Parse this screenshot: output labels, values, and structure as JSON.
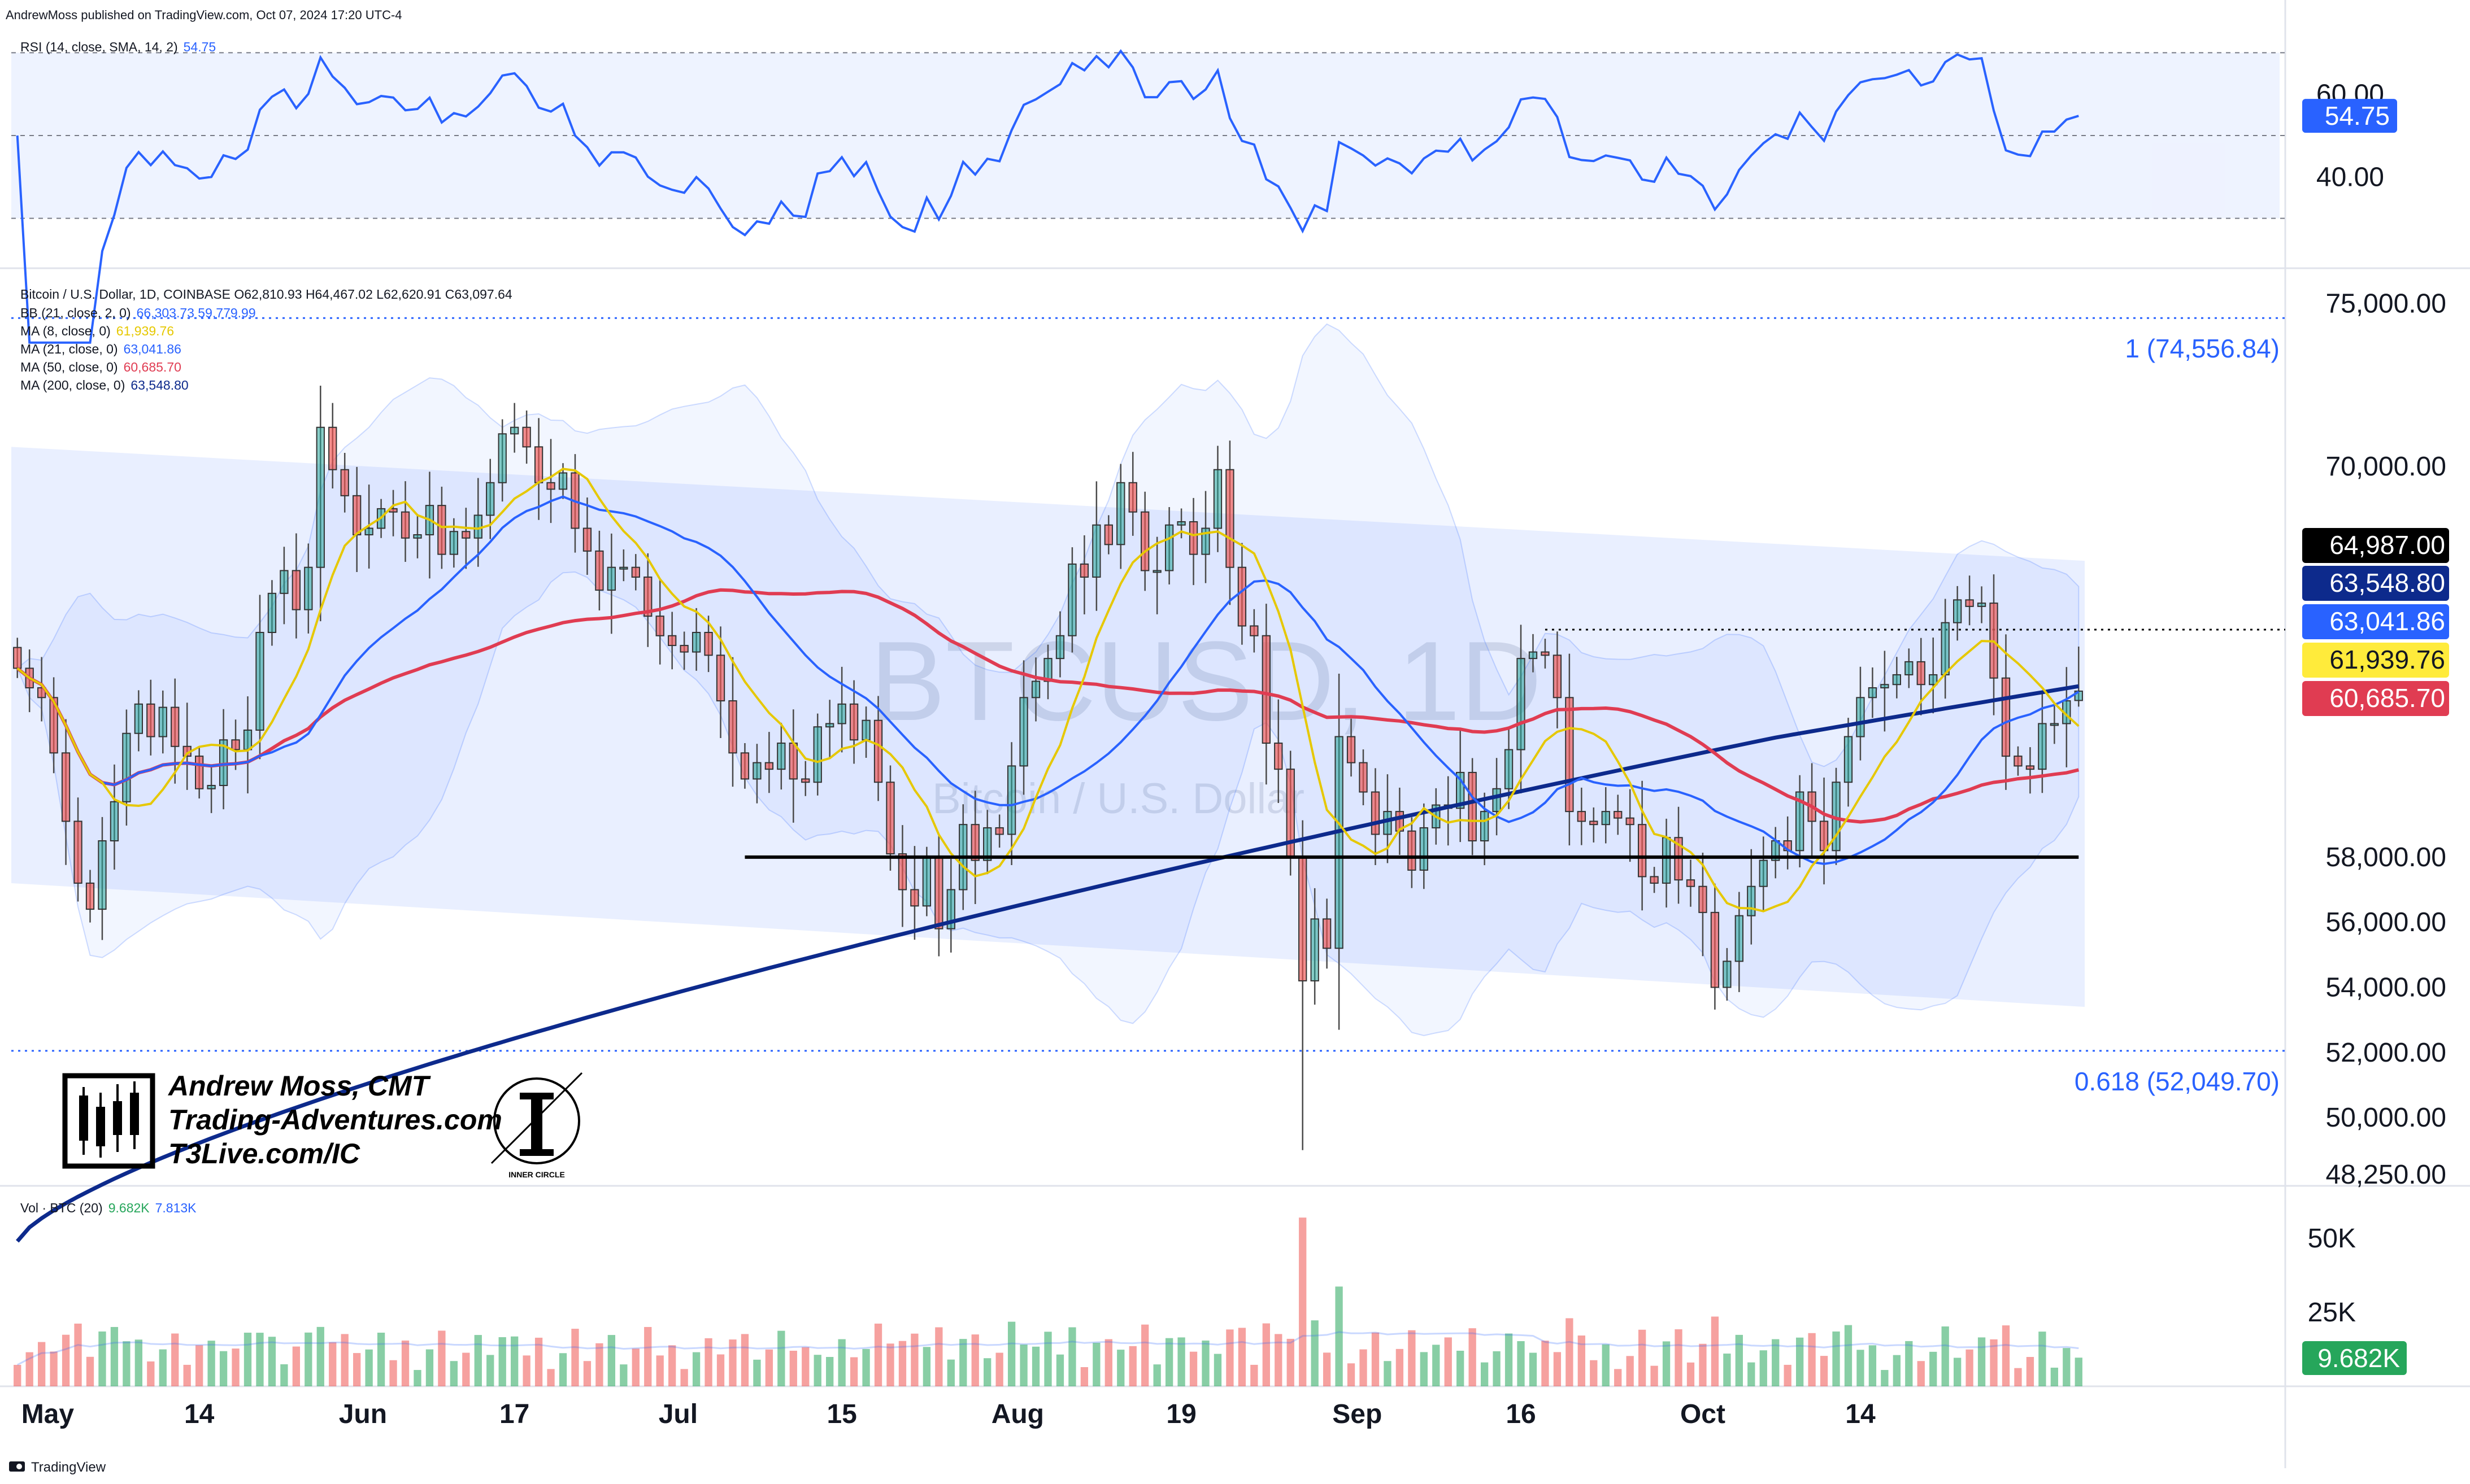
{
  "header": {
    "published": "AndrewMoss published on TradingView.com, Oct 07, 2024 17:20 UTC-4"
  },
  "footer": {
    "brand": "TradingView"
  },
  "watermark": {
    "symbol": "BTCUSD, 1D",
    "name": "Bitcoin / U.S. Dollar"
  },
  "signature": {
    "line1": "Andrew Moss, CMT",
    "line2": "Trading-Adventures.com",
    "line3": "T3Live.com/IC",
    "logo_caption": "INNER CIRCLE"
  },
  "rsi_legend": {
    "label": "RSI (14, close, SMA, 14, 2)",
    "value": "54.75"
  },
  "price_legend": {
    "title": "Bitcoin / U.S. Dollar, 1D, COINBASE  O62,810.93  H64,467.02  L62,620.91  C63,097.64",
    "lines": [
      {
        "label": "BB (21, close, 2, 0)",
        "value": "66,303.73  59,779.99",
        "color": "#2962ff"
      },
      {
        "label": "MA (8, close, 0)",
        "value": "61,939.76",
        "color": "#e6c800"
      },
      {
        "label": "MA (21, close, 0)",
        "value": "63,041.86",
        "color": "#2962ff"
      },
      {
        "label": "MA (50, close, 0)",
        "value": "60,685.70",
        "color": "#e03c52"
      },
      {
        "label": "MA (200, close, 0)",
        "value": "63,548.80",
        "color": "#0d2a8c"
      }
    ]
  },
  "vol_legend": {
    "label": "Vol · BTC (20)",
    "value1": "9.682K",
    "value2": "7.813K"
  },
  "price_axis_labels": [
    "75,000.00",
    "70,000.00",
    "58,000.00",
    "56,000.00",
    "54,000.00",
    "52,000.00",
    "50,000.00",
    "48,250.00"
  ],
  "rsi_axis_labels": [
    "60.00",
    "40.00"
  ],
  "vol_axis_labels": [
    "50K",
    "25K"
  ],
  "x_axis_labels": [
    "May",
    "14",
    "Jun",
    "17",
    "Jul",
    "15",
    "Aug",
    "19",
    "Sep",
    "16",
    "Oct",
    "14"
  ],
  "price_tags": [
    {
      "text": "64,987.00",
      "bg": "#000000",
      "fg": "#ffffff"
    },
    {
      "text": "63,548.80",
      "bg": "#0d2a8c",
      "fg": "#ffffff"
    },
    {
      "text": "63,041.86",
      "bg": "#2962ff",
      "fg": "#ffffff"
    },
    {
      "text": "61,939.76",
      "bg": "#ffeb3b",
      "fg": "#131722"
    },
    {
      "text": "60,685.70",
      "bg": "#e03c52",
      "fg": "#ffffff"
    }
  ],
  "rsi_tag": {
    "text": "54.75",
    "bg": "#2962ff",
    "fg": "#ffffff"
  },
  "vol_tag": {
    "text": "9.682K",
    "bg": "#26a65b",
    "fg": "#ffffff"
  },
  "fib_levels": [
    {
      "label": "1 (74,556.84)",
      "price": 74556.84
    },
    {
      "label": "0.618 (52,049.70)",
      "price": 52049.7
    }
  ],
  "colors": {
    "up": "#26a69a",
    "down": "#ef5350",
    "ma8": "#e6c800",
    "ma21": "#2962ff",
    "ma50": "#e03c52",
    "ma200": "#0d2a8c",
    "band": "#2962ff",
    "rsi": "#2962ff"
  },
  "chart_data": {
    "type": "candlestick",
    "symbol": "BTCUSD",
    "interval": "1D",
    "exchange": "COINBASE",
    "last_bar": {
      "open": 62810.93,
      "high": 64467.02,
      "low": 62620.91,
      "close": 63097.64
    },
    "x_labels": [
      "May",
      "14",
      "Jun",
      "17",
      "Jul",
      "15",
      "Aug",
      "19",
      "Sep",
      "16",
      "Oct",
      "14"
    ],
    "closes_approx": [
      63800,
      63200,
      62900,
      61200,
      59100,
      57200,
      56400,
      58500,
      59700,
      61800,
      62700,
      61700,
      62600,
      61400,
      61100,
      60100,
      60200,
      61600,
      61300,
      61900,
      64900,
      66100,
      66800,
      65600,
      66900,
      71200,
      69900,
      69100,
      67900,
      68100,
      68700,
      68600,
      67800,
      67900,
      68800,
      67300,
      68000,
      67800,
      68500,
      69500,
      71000,
      71200,
      70600,
      69500,
      69300,
      69800,
      68100,
      67400,
      66200,
      66900,
      66900,
      66600,
      65400,
      64800,
      64500,
      64300,
      64900,
      64200,
      62800,
      61200,
      60400,
      60900,
      60700,
      61500,
      60400,
      60300,
      62000,
      62100,
      62700,
      61600,
      62200,
      60300,
      58100,
      57000,
      56500,
      58000,
      55800,
      57000,
      59000,
      57900,
      58900,
      58700,
      60800,
      62900,
      63400,
      64100,
      64800,
      67000,
      66600,
      68200,
      67600,
      69500,
      68600,
      66800,
      66800,
      68200,
      68300,
      67300,
      68100,
      69900,
      66900,
      65100,
      64800,
      61500,
      60700,
      58000,
      54200,
      56100,
      55200,
      61700,
      60900,
      60000,
      58700,
      59400,
      58800,
      57600,
      58900,
      59600,
      59500,
      60600,
      58500,
      59400,
      60100,
      61300,
      64100,
      64300,
      64200,
      62900,
      59400,
      59100,
      59000,
      59400,
      59200,
      59000,
      57400,
      57200,
      58600,
      57300,
      57100,
      56300,
      54000,
      54800,
      56200,
      57100,
      57900,
      58500,
      58200,
      60000,
      59100,
      58200,
      60300,
      61700,
      62900,
      63200,
      63300,
      63600,
      64000,
      63300,
      63600,
      65200,
      65900,
      65700,
      65800,
      63500,
      61100,
      60800,
      60700,
      62100,
      62100,
      62800,
      63100
    ],
    "ma_last": {
      "ma8": 61939.76,
      "ma21": 63041.86,
      "ma50": 60685.7,
      "ma200": 63548.8
    },
    "bb_last": {
      "upper": 66303.73,
      "lower": 59779.99
    },
    "resistance_level": 64987.0,
    "support_level": 58000,
    "fib": [
      {
        "ratio": "1",
        "price": 74556.84
      },
      {
        "ratio": "0.618",
        "price": 52049.7
      }
    ],
    "rsi": {
      "period": 14,
      "last": 54.75,
      "levels": [
        30,
        70
      ],
      "ylim": [
        20,
        80
      ]
    },
    "volume": {
      "last": 9682,
      "sma20": 7813,
      "peak_approx": 57000
    }
  }
}
